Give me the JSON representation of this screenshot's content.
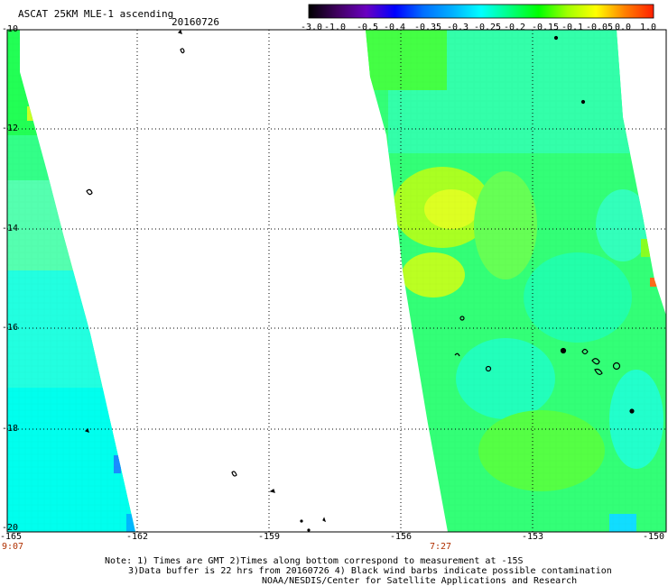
{
  "header": {
    "title": "ASCAT 25KM MLE-1 ascending",
    "date": "20160726"
  },
  "colorbar": {
    "labels": [
      "-3.0",
      "-1.0",
      "-0.5",
      "-0.4",
      "-0.35",
      "-0.3",
      "-0.25",
      "-0.2",
      "-0.15",
      "-0.1",
      "-0.05",
      "0.0",
      "1.0"
    ],
    "colors": [
      "#000000",
      "#400060",
      "#6a00c0",
      "#0000ff",
      "#0070ff",
      "#00b0ff",
      "#00ffff",
      "#00ff80",
      "#00ff00",
      "#a0ff00",
      "#ffff00",
      "#ff8000",
      "#ff2000"
    ]
  },
  "axes": {
    "lat_labels": [
      "-10",
      "-12",
      "-14",
      "-16",
      "-18",
      "-20"
    ],
    "lon_labels": [
      "-165",
      "-162",
      "-159",
      "-156",
      "-153",
      "-150"
    ]
  },
  "times": {
    "left": "9:07",
    "right": "7:27"
  },
  "notes": {
    "line1": "Note: 1) Times are GMT 2)Times along bottom correspond to measurement at -15S",
    "line2": "3)Data buffer is 22 hrs from 20160726 4) Black wind barbs indicate possible contamination",
    "line3": "NOAA/NESDIS/Center for Satellite Applications and Research"
  }
}
